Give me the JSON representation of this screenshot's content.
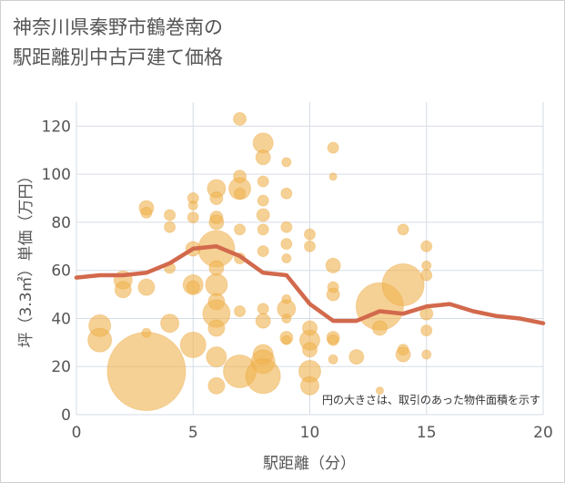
{
  "chart_data": {
    "type": "scatter",
    "title_line1": "神奈川県秦野市鶴巻南の",
    "title_line2": "駅距離別中古戸建て価格",
    "xlabel": "駅距離（分）",
    "ylabel": "坪（3.3㎡）単価（万円）",
    "xlim": [
      0,
      20
    ],
    "ylim": [
      0,
      130
    ],
    "x_ticks": [
      "0",
      "5",
      "10",
      "15",
      "20"
    ],
    "y_ticks": [
      "0",
      "20",
      "40",
      "60",
      "80",
      "100",
      "120"
    ],
    "note": "円の大きさは、取引のあった物件面積を示す",
    "grid": true,
    "colors": {
      "bubble": "#f0b34e",
      "line": "#d2694c",
      "grid": "#d6dde6",
      "plot_bg": "#ffffff"
    },
    "trend_line": {
      "x": [
        0,
        1,
        2,
        3,
        4,
        5,
        6,
        7,
        8,
        9,
        10,
        11,
        12,
        13,
        14,
        15,
        16,
        17,
        18,
        19,
        20
      ],
      "y": [
        57,
        58,
        58,
        59,
        63,
        69,
        70,
        66,
        59,
        58,
        46,
        39,
        39,
        43,
        42,
        45,
        46,
        43,
        41,
        40,
        38
      ]
    },
    "points": [
      {
        "x": 1,
        "y": 37,
        "s": 12
      },
      {
        "x": 1,
        "y": 31,
        "s": 13
      },
      {
        "x": 2,
        "y": 56,
        "s": 10
      },
      {
        "x": 2,
        "y": 52,
        "s": 9
      },
      {
        "x": 3,
        "y": 86,
        "s": 8
      },
      {
        "x": 3,
        "y": 84,
        "s": 6
      },
      {
        "x": 3,
        "y": 53,
        "s": 9
      },
      {
        "x": 3,
        "y": 34,
        "s": 5
      },
      {
        "x": 3,
        "y": 18,
        "s": 43
      },
      {
        "x": 4,
        "y": 83,
        "s": 6
      },
      {
        "x": 4,
        "y": 78,
        "s": 6
      },
      {
        "x": 4,
        "y": 61,
        "s": 6
      },
      {
        "x": 4,
        "y": 38,
        "s": 10
      },
      {
        "x": 5,
        "y": 90,
        "s": 6
      },
      {
        "x": 5,
        "y": 87,
        "s": 5
      },
      {
        "x": 5,
        "y": 82,
        "s": 6
      },
      {
        "x": 5,
        "y": 69,
        "s": 8
      },
      {
        "x": 5,
        "y": 54,
        "s": 11
      },
      {
        "x": 5,
        "y": 53,
        "s": 7
      },
      {
        "x": 5,
        "y": 29,
        "s": 14
      },
      {
        "x": 6,
        "y": 94,
        "s": 10
      },
      {
        "x": 6,
        "y": 90,
        "s": 7
      },
      {
        "x": 6,
        "y": 82,
        "s": 7
      },
      {
        "x": 6,
        "y": 80,
        "s": 8
      },
      {
        "x": 6,
        "y": 69,
        "s": 20
      },
      {
        "x": 6,
        "y": 61,
        "s": 8
      },
      {
        "x": 6,
        "y": 54,
        "s": 12
      },
      {
        "x": 6,
        "y": 47,
        "s": 9
      },
      {
        "x": 6,
        "y": 42,
        "s": 15
      },
      {
        "x": 6,
        "y": 36,
        "s": 9
      },
      {
        "x": 6,
        "y": 24,
        "s": 11
      },
      {
        "x": 6,
        "y": 12,
        "s": 9
      },
      {
        "x": 7,
        "y": 123,
        "s": 7
      },
      {
        "x": 7,
        "y": 99,
        "s": 7
      },
      {
        "x": 7,
        "y": 94,
        "s": 12
      },
      {
        "x": 7,
        "y": 92,
        "s": 6
      },
      {
        "x": 7,
        "y": 77,
        "s": 6
      },
      {
        "x": 7,
        "y": 65,
        "s": 6
      },
      {
        "x": 7,
        "y": 43,
        "s": 6
      },
      {
        "x": 7,
        "y": 18,
        "s": 18
      },
      {
        "x": 8,
        "y": 113,
        "s": 11
      },
      {
        "x": 8,
        "y": 107,
        "s": 8
      },
      {
        "x": 8,
        "y": 97,
        "s": 6
      },
      {
        "x": 8,
        "y": 89,
        "s": 6
      },
      {
        "x": 8,
        "y": 83,
        "s": 7
      },
      {
        "x": 8,
        "y": 77,
        "s": 6
      },
      {
        "x": 8,
        "y": 68,
        "s": 6
      },
      {
        "x": 8,
        "y": 44,
        "s": 6
      },
      {
        "x": 8,
        "y": 39,
        "s": 8
      },
      {
        "x": 8,
        "y": 25,
        "s": 11
      },
      {
        "x": 8,
        "y": 22,
        "s": 13
      },
      {
        "x": 8,
        "y": 16,
        "s": 19
      },
      {
        "x": 9,
        "y": 105,
        "s": 5
      },
      {
        "x": 9,
        "y": 92,
        "s": 6
      },
      {
        "x": 9,
        "y": 78,
        "s": 6
      },
      {
        "x": 9,
        "y": 71,
        "s": 6
      },
      {
        "x": 9,
        "y": 65,
        "s": 5
      },
      {
        "x": 9,
        "y": 48,
        "s": 5
      },
      {
        "x": 9,
        "y": 44,
        "s": 10
      },
      {
        "x": 9,
        "y": 40,
        "s": 5
      },
      {
        "x": 9,
        "y": 32,
        "s": 7
      },
      {
        "x": 9,
        "y": 31,
        "s": 5
      },
      {
        "x": 10,
        "y": 75,
        "s": 6
      },
      {
        "x": 10,
        "y": 70,
        "s": 6
      },
      {
        "x": 10,
        "y": 36,
        "s": 8
      },
      {
        "x": 10,
        "y": 31,
        "s": 11
      },
      {
        "x": 10,
        "y": 27,
        "s": 8
      },
      {
        "x": 10,
        "y": 18,
        "s": 12
      },
      {
        "x": 10,
        "y": 12,
        "s": 10
      },
      {
        "x": 11,
        "y": 111,
        "s": 6
      },
      {
        "x": 11,
        "y": 99,
        "s": 4
      },
      {
        "x": 11,
        "y": 62,
        "s": 8
      },
      {
        "x": 11,
        "y": 53,
        "s": 6
      },
      {
        "x": 11,
        "y": 50,
        "s": 7
      },
      {
        "x": 11,
        "y": 32,
        "s": 7
      },
      {
        "x": 11,
        "y": 31,
        "s": 6
      },
      {
        "x": 11,
        "y": 23,
        "s": 5
      },
      {
        "x": 12,
        "y": 24,
        "s": 8
      },
      {
        "x": 13,
        "y": 45,
        "s": 26
      },
      {
        "x": 13,
        "y": 36,
        "s": 8
      },
      {
        "x": 13,
        "y": 10,
        "s": 4
      },
      {
        "x": 14,
        "y": 77,
        "s": 6
      },
      {
        "x": 14,
        "y": 54,
        "s": 23
      },
      {
        "x": 14,
        "y": 27,
        "s": 6
      },
      {
        "x": 14,
        "y": 25,
        "s": 8
      },
      {
        "x": 15,
        "y": 70,
        "s": 6
      },
      {
        "x": 15,
        "y": 62,
        "s": 5
      },
      {
        "x": 15,
        "y": 58,
        "s": 6
      },
      {
        "x": 15,
        "y": 42,
        "s": 7
      },
      {
        "x": 15,
        "y": 35,
        "s": 6
      },
      {
        "x": 15,
        "y": 25,
        "s": 5
      }
    ]
  }
}
